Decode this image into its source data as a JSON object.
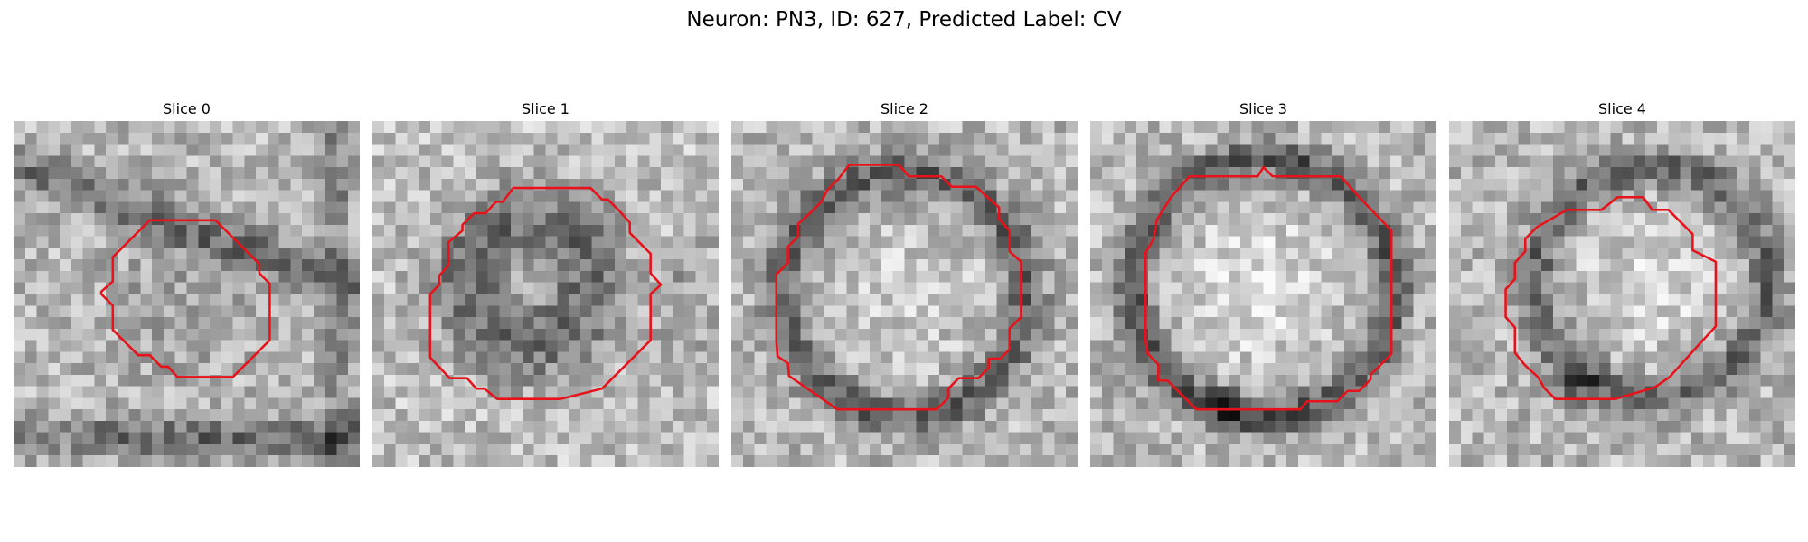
{
  "figure": {
    "title": "Neuron: PN3, ID: 627, Predicted Label: CV",
    "contour_color": "#e8121a"
  },
  "panels": [
    {
      "title": "Slice 0"
    },
    {
      "title": "Slice 1"
    },
    {
      "title": "Slice 2"
    },
    {
      "title": "Slice 3"
    },
    {
      "title": "Slice 4"
    }
  ]
}
